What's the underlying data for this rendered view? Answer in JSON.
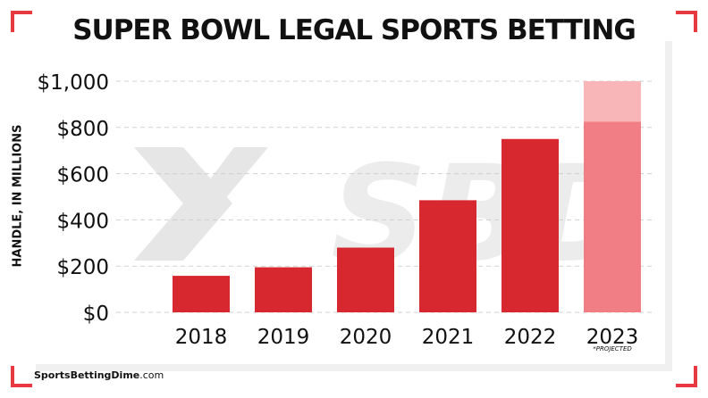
{
  "title": "SUPER BOWL LEGAL SPORTS BETTING",
  "ylabel": "HANDLE, IN MILLIONS",
  "footer": {
    "site_bold": "SportsBettingDime",
    "site_suffix": ".com"
  },
  "watermark": "SBD",
  "colors": {
    "bar": "#d7282f",
    "projected_bar": "#f07e84",
    "projected_top": "#f8b6b9",
    "corner": "#e63a40",
    "grid": "#d0d0d0",
    "text": "#111111"
  },
  "chart_data": {
    "type": "bar",
    "categories": [
      "2018",
      "2019",
      "2020",
      "2021",
      "2022",
      "2023"
    ],
    "values": [
      158,
      195,
      280,
      485,
      750,
      1000
    ],
    "projected_base_2023": 825,
    "ylim": [
      0,
      1000
    ],
    "yticks": [
      0,
      200,
      400,
      600,
      800,
      1000
    ],
    "ytick_labels": [
      "$0",
      "$200",
      "$400",
      "$600",
      "$800",
      "$1,000"
    ],
    "annotation": "*PROJECTED",
    "grid": true
  }
}
